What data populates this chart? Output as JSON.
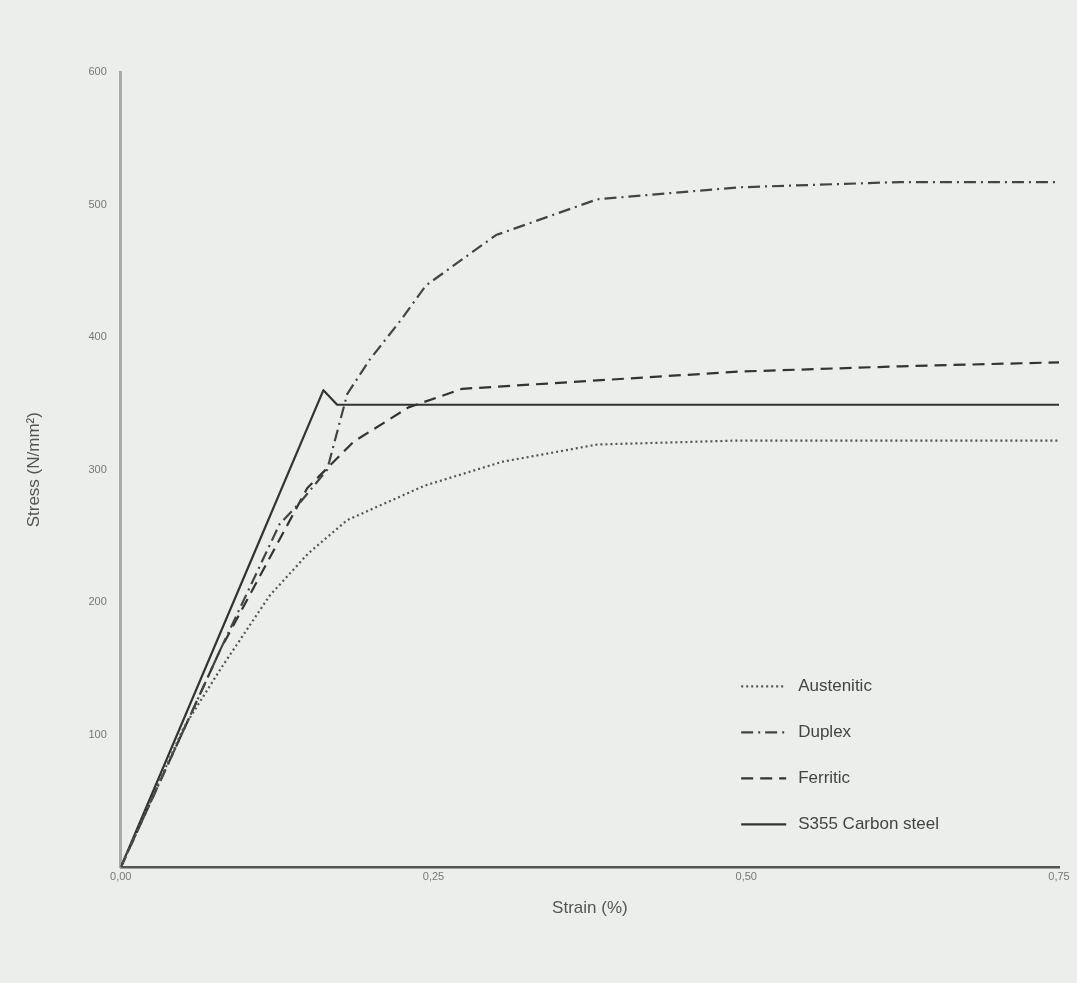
{
  "chart_data": {
    "type": "line",
    "xlabel": "Strain (%)",
    "ylabel": "Stress (N/mm²)",
    "xlim": [
      0,
      0.75
    ],
    "xticks": [
      {
        "value": 0,
        "label": "0,00"
      },
      {
        "value": 0.25,
        "label": "0,25"
      },
      {
        "value": 0.5,
        "label": "0,50"
      },
      {
        "value": 0.75,
        "label": "0,75"
      }
    ],
    "ylim": [
      0,
      600
    ],
    "yticks": [
      100,
      200,
      300,
      400,
      500,
      600
    ],
    "grid": false,
    "legend": "bottom right",
    "marker": "none",
    "series": [
      {
        "name": "Austenitic",
        "color": "#555555",
        "line_style": "dotted",
        "x": [
          0,
          0.05,
          0.08,
          0.119,
          0.15,
          0.181,
          0.243,
          0.305,
          0.381,
          0.494,
          0.62,
          0.75
        ],
        "values": [
          0,
          105,
          150,
          205,
          237,
          262,
          288,
          306,
          319,
          322,
          322,
          322
        ]
      },
      {
        "name": "Duplex",
        "color": "#444444",
        "line_style": "dashdot",
        "x": [
          0,
          0.08,
          0.127,
          0.144,
          0.165,
          0.181,
          0.199,
          0.224,
          0.244,
          0.3,
          0.381,
          0.494,
          0.623,
          0.75
        ],
        "values": [
          0,
          165,
          259,
          276,
          300,
          357,
          383,
          413,
          439,
          477,
          504,
          513,
          517,
          517
        ]
      },
      {
        "name": "Ferritic",
        "color": "#333333",
        "line_style": "dashed",
        "x": [
          0,
          0.08,
          0.149,
          0.186,
          0.23,
          0.273,
          0.341,
          0.494,
          0.623,
          0.75
        ],
        "values": [
          0,
          165,
          286,
          321,
          347,
          361,
          365,
          374,
          378,
          381
        ]
      },
      {
        "name": "S355 Carbon steel",
        "color": "#333333",
        "line_style": "solid",
        "x": [
          0,
          0.162,
          0.173,
          0.75
        ],
        "values": [
          0,
          360,
          349,
          349
        ]
      }
    ]
  }
}
